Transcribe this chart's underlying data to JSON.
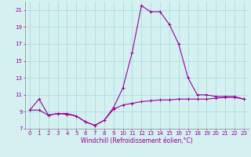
{
  "xlabel": "Windchill (Refroidissement éolien,°C)",
  "background_color": "#d4f0f0",
  "grid_color": "#aadddd",
  "line_color": "#990099",
  "x_hours": [
    0,
    1,
    2,
    3,
    4,
    5,
    6,
    7,
    8,
    9,
    10,
    11,
    12,
    13,
    14,
    15,
    16,
    17,
    18,
    19,
    20,
    21,
    22,
    23
  ],
  "y_temp": [
    9.2,
    10.5,
    8.6,
    8.8,
    8.8,
    8.5,
    7.8,
    7.4,
    8.0,
    9.5,
    11.8,
    16.0,
    21.5,
    20.8,
    20.8,
    19.3,
    17.0,
    13.0,
    11.0,
    11.0,
    10.8,
    10.8,
    10.8,
    10.5
  ],
  "y_windchill": [
    9.2,
    9.2,
    8.6,
    8.8,
    8.7,
    8.5,
    7.8,
    7.4,
    8.0,
    9.3,
    9.8,
    10.0,
    10.2,
    10.3,
    10.4,
    10.4,
    10.5,
    10.5,
    10.5,
    10.5,
    10.6,
    10.7,
    10.7,
    10.5
  ],
  "ylim": [
    7,
    22
  ],
  "xlim": [
    -0.5,
    23.5
  ],
  "yticks": [
    7,
    9,
    11,
    13,
    15,
    17,
    19,
    21
  ],
  "xticks": [
    0,
    1,
    2,
    3,
    4,
    5,
    6,
    7,
    8,
    9,
    10,
    11,
    12,
    13,
    14,
    15,
    16,
    17,
    18,
    19,
    20,
    21,
    22,
    23
  ],
  "tick_fontsize": 5.0,
  "xlabel_fontsize": 5.5,
  "marker_size": 3.0,
  "line_width": 0.8
}
